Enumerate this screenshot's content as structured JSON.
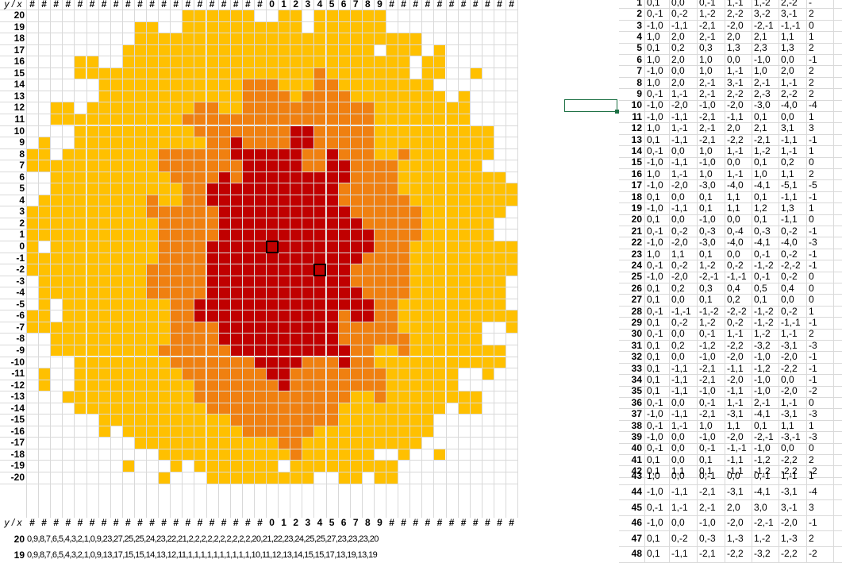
{
  "colors": {
    "outer": "#ffc000",
    "mid": "#f08010",
    "inner": "#c00000",
    "marker_border": "#000000",
    "selection": "#1e7145",
    "gridline": "#d9d9d9"
  },
  "heatmap": {
    "corner_label": "y / x",
    "x_header_hash": "#",
    "x_labels": [
      "0",
      "1",
      "2",
      "3",
      "4",
      "5",
      "6",
      "7",
      "8",
      "9"
    ],
    "y_labels": [
      "20",
      "19",
      "18",
      "17",
      "16",
      "15",
      "14",
      "13",
      "12",
      "11",
      "10",
      "9",
      "8",
      "7",
      "6",
      "5",
      "4",
      "3",
      "2",
      "1",
      "0",
      "-1",
      "-2",
      "-3",
      "-4",
      "-5",
      "-6",
      "-7",
      "-8",
      "-9",
      "-10",
      "-11",
      "-12",
      "-13",
      "-14",
      "-15",
      "-16",
      "-17",
      "-18",
      "-19",
      "-20"
    ]
  },
  "bottom_table": {
    "corner_label": "y / x",
    "row20_label": "20",
    "row19_label": "19",
    "row20_values": "0,9,8,7,6,5,4,3,2,1,0,9,23,27,25,25,24,23,22,21,2,2,2,2,2,2,2,2,2,2,20,21,22,23,24,25,25,27,23,23,23,20",
    "row19_values": "0,9,8,7,6,5,4,3,2,1,0,9,13,17,15,15,14,13,12,11,1,1,1,1,1,1,1,1,1,1,10,11,12,13,14,15,15,17,13,19,13,19"
  },
  "right_table": {
    "rows": [
      {
        "n": "1",
        "v": [
          "0,1",
          "0,0",
          "0,-1",
          "1,-1",
          "1,-2",
          "2,-2",
          "-"
        ]
      },
      {
        "n": "2",
        "v": [
          "0,-1",
          "0,-2",
          "1,-2",
          "2,-2",
          "3,-2",
          "3,-1",
          "2"
        ]
      },
      {
        "n": "3",
        "v": [
          "-1,0",
          "-1,1",
          "-2,1",
          "-2,0",
          "-2,-1",
          "-1,-1",
          "0"
        ]
      },
      {
        "n": "4",
        "v": [
          "1,0",
          "2,0",
          "2,-1",
          "2,0",
          "2,1",
          "1,1",
          "1"
        ]
      },
      {
        "n": "5",
        "v": [
          "0,1",
          "0,2",
          "0,3",
          "1,3",
          "2,3",
          "1,3",
          "2"
        ]
      },
      {
        "n": "6",
        "v": [
          "1,0",
          "2,0",
          "1,0",
          "0,0",
          "-1,0",
          "0,0",
          "-1"
        ]
      },
      {
        "n": "7",
        "v": [
          "-1,0",
          "0,0",
          "1,0",
          "1,-1",
          "1,0",
          "2,0",
          "2"
        ]
      },
      {
        "n": "8",
        "v": [
          "1,0",
          "2,0",
          "2,-1",
          "3,-1",
          "2,-1",
          "1,-1",
          "2"
        ]
      },
      {
        "n": "9",
        "v": [
          "0,-1",
          "1,-1",
          "2,-1",
          "2,-2",
          "2,-3",
          "2,-2",
          "2"
        ]
      },
      {
        "n": "10",
        "v": [
          "-1,0",
          "-2,0",
          "-1,0",
          "-2,0",
          "-3,0",
          "-4,0",
          "-4"
        ]
      },
      {
        "n": "11",
        "v": [
          "-1,0",
          "-1,1",
          "-2,1",
          "-1,1",
          "0,1",
          "0,0",
          "1"
        ]
      },
      {
        "n": "12",
        "v": [
          "1,0",
          "1,-1",
          "2,-1",
          "2,0",
          "2,1",
          "3,1",
          "3"
        ]
      },
      {
        "n": "13",
        "v": [
          "0,1",
          "-1,1",
          "-2,1",
          "-2,2",
          "-2,1",
          "-1,1",
          "-1"
        ]
      },
      {
        "n": "14",
        "v": [
          "0,-1",
          "0,0",
          "1,0",
          "1,-1",
          "1,-2",
          "1,-1",
          "1"
        ]
      },
      {
        "n": "15",
        "v": [
          "-1,0",
          "-1,1",
          "-1,0",
          "0,0",
          "0,1",
          "0,2",
          "0"
        ]
      },
      {
        "n": "16",
        "v": [
          "1,0",
          "1,-1",
          "1,0",
          "1,-1",
          "1,0",
          "1,1",
          "2"
        ]
      },
      {
        "n": "17",
        "v": [
          "-1,0",
          "-2,0",
          "-3,0",
          "-4,0",
          "-4,1",
          "-5,1",
          "-5"
        ]
      },
      {
        "n": "18",
        "v": [
          "0,1",
          "0,0",
          "0,1",
          "1,1",
          "0,1",
          "-1,1",
          "-1"
        ]
      },
      {
        "n": "19",
        "v": [
          "-1,0",
          "-1,1",
          "0,1",
          "1,1",
          "1,2",
          "1,3",
          "1"
        ]
      },
      {
        "n": "20",
        "v": [
          "0,1",
          "0,0",
          "-1,0",
          "0,0",
          "0,1",
          "-1,1",
          "0"
        ]
      },
      {
        "n": "21",
        "v": [
          "0,-1",
          "0,-2",
          "0,-3",
          "0,-4",
          "0,-3",
          "0,-2",
          "-1"
        ]
      },
      {
        "n": "22",
        "v": [
          "-1,0",
          "-2,0",
          "-3,0",
          "-4,0",
          "-4,1",
          "-4,0",
          "-3"
        ]
      },
      {
        "n": "23",
        "v": [
          "1,0",
          "1,1",
          "0,1",
          "0,0",
          "0,-1",
          "0,-2",
          "-1"
        ]
      },
      {
        "n": "24",
        "v": [
          "0,-1",
          "0,-2",
          "1,-2",
          "0,-2",
          "-1,-2",
          "-2,-2",
          "-1"
        ]
      },
      {
        "n": "25",
        "v": [
          "-1,0",
          "-2,0",
          "-2,-1",
          "-1,-1",
          "0,-1",
          "0,-2",
          "0"
        ]
      },
      {
        "n": "26",
        "v": [
          "0,1",
          "0,2",
          "0,3",
          "0,4",
          "0,5",
          "0,4",
          "0"
        ]
      },
      {
        "n": "27",
        "v": [
          "0,1",
          "0,0",
          "0,1",
          "0,2",
          "0,1",
          "0,0",
          "0"
        ]
      },
      {
        "n": "28",
        "v": [
          "0,-1",
          "-1,-1",
          "-1,-2",
          "-2,-2",
          "-1,-2",
          "0,-2",
          "1"
        ]
      },
      {
        "n": "29",
        "v": [
          "0,1",
          "0,-2",
          "1,-2",
          "0,-2",
          "-1,-2",
          "-1,-1",
          "-1"
        ]
      },
      {
        "n": "30",
        "v": [
          "0,-1",
          "0,0",
          "0,-1",
          "1,-1",
          "1,-2",
          "1,-1",
          "2"
        ]
      },
      {
        "n": "31",
        "v": [
          "0,1",
          "0,2",
          "-1,2",
          "-2,2",
          "-3,2",
          "-3,1",
          "-3"
        ]
      },
      {
        "n": "32",
        "v": [
          "0,1",
          "0,0",
          "-1,0",
          "-2,0",
          "-1,0",
          "-2,0",
          "-1"
        ]
      },
      {
        "n": "33",
        "v": [
          "0,1",
          "-1,1",
          "-2,1",
          "-1,1",
          "-1,2",
          "-2,2",
          "-1"
        ]
      },
      {
        "n": "34",
        "v": [
          "0,1",
          "-1,1",
          "-2,1",
          "-2,0",
          "-1,0",
          "0,0",
          "-1"
        ]
      },
      {
        "n": "35",
        "v": [
          "0,1",
          "-1,1",
          "-1,0",
          "-1,1",
          "-1,0",
          "-2,0",
          "-2"
        ]
      },
      {
        "n": "36",
        "v": [
          "0,-1",
          "0,0",
          "0,-1",
          "1,-1",
          "2,-1",
          "1,-1",
          "0"
        ]
      },
      {
        "n": "37",
        "v": [
          "-1,0",
          "-1,1",
          "-2,1",
          "-3,1",
          "-4,1",
          "-3,1",
          "-3"
        ]
      },
      {
        "n": "38",
        "v": [
          "0,-1",
          "1,-1",
          "1,0",
          "1,1",
          "0,1",
          "1,1",
          "1"
        ]
      },
      {
        "n": "39",
        "v": [
          "-1,0",
          "0,0",
          "-1,0",
          "-2,0",
          "-2,-1",
          "-3,-1",
          "-3"
        ]
      },
      {
        "n": "40",
        "v": [
          "0,-1",
          "0,0",
          "0,-1",
          "-1,-1",
          "-1,0",
          "0,0",
          "0"
        ]
      },
      {
        "n": "41",
        "v": [
          "0,1",
          "0,0",
          "0,1",
          "-1,1",
          "-1,2",
          "-2,2",
          "2"
        ]
      },
      {
        "n": "42",
        "v": [
          "0,1",
          "1,1",
          "0,1",
          "-1,1",
          "-1,2",
          "-2,2",
          "-2"
        ]
      },
      {
        "n": "43",
        "v": [
          "1,0",
          "0,0",
          "0,-1",
          "0,0",
          "0,-1",
          "1,-1",
          "1"
        ]
      },
      {
        "n": "44",
        "v": [
          "-1,0",
          "-1,1",
          "-2,1",
          "-3,1",
          "-4,1",
          "-3,1",
          "-4"
        ]
      },
      {
        "n": "45",
        "v": [
          "0,-1",
          "1,-1",
          "2,-1",
          "2,0",
          "3,0",
          "3,-1",
          "3"
        ]
      },
      {
        "n": "46",
        "v": [
          "-1,0",
          "0,0",
          "-1,0",
          "-2,0",
          "-2,-1",
          "-2,0",
          "-1"
        ]
      },
      {
        "n": "47",
        "v": [
          "0,1",
          "0,-2",
          "0,-3",
          "1,-3",
          "1,-2",
          "1,-3",
          "2"
        ]
      },
      {
        "n": "48",
        "v": [
          "0,1",
          "-1,1",
          "-2,1",
          "-2,2",
          "-3,2",
          "-2,2",
          "-2"
        ]
      }
    ]
  }
}
